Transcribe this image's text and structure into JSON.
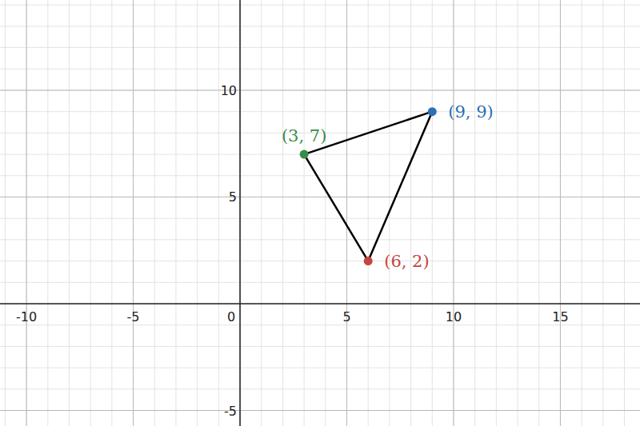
{
  "chart_data": {
    "type": "polygon",
    "x": [
      3,
      9,
      6
    ],
    "values": [
      7,
      9,
      2
    ],
    "colors": [
      "#388c46",
      "#2d70b3",
      "#c74440"
    ],
    "value_labels": [
      "(3, 7)",
      "(9, 9)",
      "(6, 2)"
    ],
    "data_labels": true,
    "color": "#000000",
    "xlim": [
      -11.24,
      18.73
    ],
    "ylim": [
      -5.73,
      14.23
    ],
    "xticks": [
      -10,
      -5,
      0,
      5,
      10,
      15
    ],
    "yticks": [
      -5,
      5,
      10
    ],
    "grid": true
  }
}
